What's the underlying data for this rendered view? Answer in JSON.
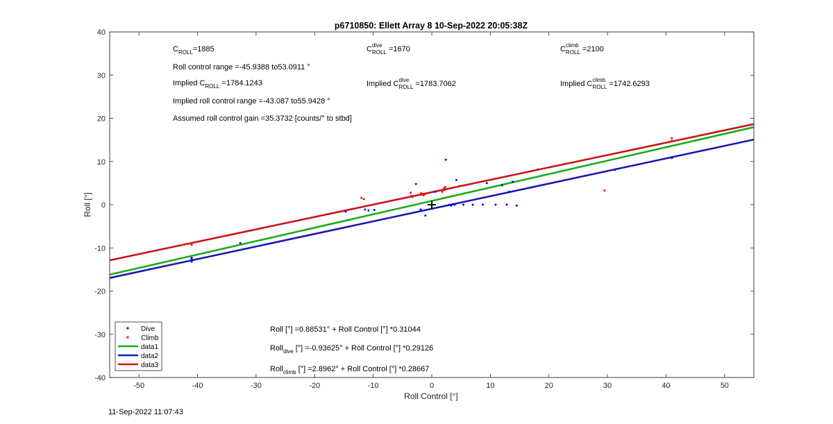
{
  "footer_timestamp": "11-Sep-2022 11:07:43",
  "colors": {
    "dive": "#0000ff",
    "climb": "#ff0000",
    "data1": "#1aab1a",
    "data2": "#1a1aab",
    "data3": "#c8141a"
  },
  "annotations": {
    "c_roll": {
      "base": "C",
      "sub": "ROLL",
      "rest": "=1885"
    },
    "c_roll_dive": {
      "base": "C",
      "sup": "dive",
      "sub": "ROLL",
      "rest": " =1670"
    },
    "c_roll_climb": {
      "base": "C",
      "sup": "climb",
      "sub": "ROLL",
      "rest": " =2100"
    },
    "roll_control_range": "Roll control range =-45.9388 to53.0911 °",
    "implied_c_roll": {
      "pre": "Implied C",
      "sub": "ROLL",
      "rest": " =1784.1243"
    },
    "implied_c_roll_dive": {
      "pre": "Implied C",
      "sup": "dive",
      "sub": "ROLL",
      "rest": " =1783.7062"
    },
    "implied_c_roll_climb": {
      "pre": "Implied C",
      "sup": "climb",
      "sub": "ROLL",
      "rest": " =1742.6293"
    },
    "implied_range": "Implied roll control range =-43.087 to55.9428 °",
    "assumed_gain": "Assumed roll control gain =35.3732 [counts/° to stbd]",
    "fit_all": {
      "pre": "Roll [°] =0.88531° + Roll Control [°] *0.31044"
    },
    "fit_dive": {
      "pre": "Roll",
      "sub": "dive",
      "rest": " [°] =-0.93625° + Roll Control [°] *0.29126"
    },
    "fit_climb": {
      "pre": "Roll",
      "sub": "climb",
      "rest": " [°] =2.8962° + Roll Control [°] *0.28667"
    }
  },
  "chart_data": {
    "type": "scatter",
    "title": "p6710850: Ellett Array 8 10-Sep-2022 20:05:38Z",
    "xlabel": "Roll Control [°]",
    "ylabel": "Roll [°]",
    "xlim": [
      -55,
      55
    ],
    "ylim": [
      -40,
      40
    ],
    "xticks": [
      -50,
      -40,
      -30,
      -20,
      -10,
      0,
      10,
      20,
      30,
      40,
      50
    ],
    "yticks": [
      -40,
      -30,
      -20,
      -10,
      0,
      10,
      20,
      30,
      40
    ],
    "grid": false,
    "legend_position": "bottom-left",
    "legend": [
      "Dive",
      "Climb",
      "data1",
      "data2",
      "data3"
    ],
    "center_marker": [
      0,
      0
    ],
    "series": [
      {
        "name": "Dive",
        "kind": "points",
        "color": "#0000ff",
        "points": [
          [
            -41,
            -12.3
          ],
          [
            -41,
            -12.6
          ],
          [
            -41,
            -12.9
          ],
          [
            -41,
            -13.2
          ],
          [
            -32.7,
            -8.9
          ],
          [
            -14.7,
            -1.6
          ],
          [
            -11.4,
            -1.1
          ],
          [
            -10.8,
            -1.3
          ],
          [
            -9.8,
            -1.2
          ],
          [
            -2.7,
            4.8
          ],
          [
            -1.9,
            -1.4
          ],
          [
            -1.9,
            -1.1
          ],
          [
            -1.1,
            -2.5
          ],
          [
            0.6,
            3.0
          ],
          [
            2.4,
            10.4
          ],
          [
            3.0,
            0.0
          ],
          [
            3.3,
            -0.2
          ],
          [
            3.6,
            0.1
          ],
          [
            3.9,
            0.0
          ],
          [
            4.2,
            5.7
          ],
          [
            5.4,
            0.0
          ],
          [
            7.0,
            0.0
          ],
          [
            8.7,
            0.0
          ],
          [
            9.4,
            5.0
          ],
          [
            10.9,
            0.0
          ],
          [
            12.0,
            4.5
          ],
          [
            12.8,
            0.0
          ],
          [
            13.2,
            3.0
          ],
          [
            13.8,
            5.3
          ],
          [
            14.5,
            -0.2
          ],
          [
            31.3,
            8.1
          ],
          [
            41.0,
            10.8
          ]
        ]
      },
      {
        "name": "Climb",
        "kind": "points",
        "color": "#ff0000",
        "points": [
          [
            -41,
            -8.9
          ],
          [
            -41,
            -9.3
          ],
          [
            -12.0,
            1.6
          ],
          [
            -11.6,
            1.3
          ],
          [
            -3.6,
            2.8
          ],
          [
            -3.5,
            2.0
          ],
          [
            -3.3,
            1.8
          ],
          [
            -1.8,
            2.7
          ],
          [
            -1.6,
            2.3
          ],
          [
            -1.4,
            2.2
          ],
          [
            -1.2,
            2.4
          ],
          [
            1.8,
            3.0
          ],
          [
            2.1,
            3.8
          ],
          [
            2.3,
            4.1
          ],
          [
            2.2,
            3.4
          ],
          [
            4.7,
            4.3
          ],
          [
            18.1,
            8.2
          ],
          [
            29.5,
            3.3
          ],
          [
            41.0,
            14.8
          ],
          [
            41.0,
            15.4
          ]
        ]
      },
      {
        "name": "data1",
        "kind": "line",
        "color": "#1aab1a",
        "intercept": 0.88531,
        "slope": 0.31044
      },
      {
        "name": "data2",
        "kind": "line",
        "color": "#1a1aab",
        "intercept": -0.93625,
        "slope": 0.29126
      },
      {
        "name": "data3",
        "kind": "line",
        "color": "#c8141a",
        "intercept": 2.8962,
        "slope": 0.28667
      }
    ]
  }
}
